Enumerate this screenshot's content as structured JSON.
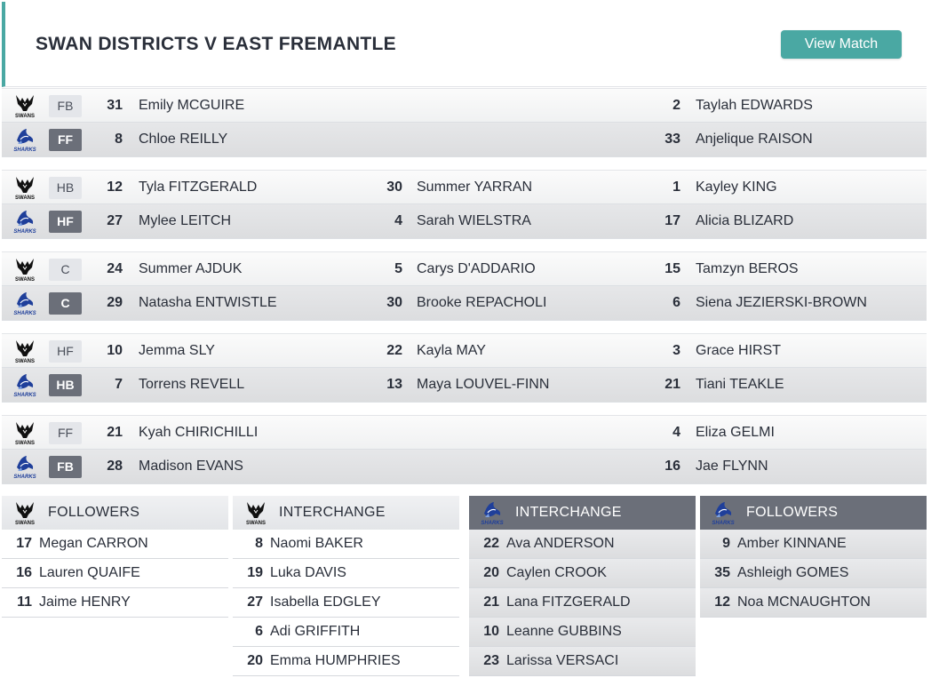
{
  "match": {
    "title": "SWAN DISTRICTS V EAST FREMANTLE",
    "view_button": "View Match"
  },
  "lines": [
    {
      "home": {
        "pos": "FB",
        "players": [
          {
            "num": "31",
            "name": "Emily MCGUIRE"
          },
          {
            "num": "",
            "name": ""
          },
          {
            "num": "2",
            "name": "Taylah EDWARDS"
          }
        ]
      },
      "away": {
        "pos": "FF",
        "players": [
          {
            "num": "8",
            "name": "Chloe REILLY"
          },
          {
            "num": "",
            "name": ""
          },
          {
            "num": "33",
            "name": "Anjelique RAISON"
          }
        ]
      }
    },
    {
      "home": {
        "pos": "HB",
        "players": [
          {
            "num": "12",
            "name": "Tyla FITZGERALD"
          },
          {
            "num": "30",
            "name": "Summer YARRAN"
          },
          {
            "num": "1",
            "name": "Kayley KING"
          }
        ]
      },
      "away": {
        "pos": "HF",
        "players": [
          {
            "num": "27",
            "name": "Mylee LEITCH"
          },
          {
            "num": "4",
            "name": "Sarah WIELSTRA"
          },
          {
            "num": "17",
            "name": "Alicia BLIZARD"
          }
        ]
      }
    },
    {
      "home": {
        "pos": "C",
        "players": [
          {
            "num": "24",
            "name": "Summer AJDUK"
          },
          {
            "num": "5",
            "name": "Carys D'ADDARIO"
          },
          {
            "num": "15",
            "name": "Tamzyn BEROS"
          }
        ]
      },
      "away": {
        "pos": "C",
        "players": [
          {
            "num": "29",
            "name": "Natasha ENTWISTLE"
          },
          {
            "num": "30",
            "name": "Brooke REPACHOLI"
          },
          {
            "num": "6",
            "name": "Siena JEZIERSKI-BROWN"
          }
        ]
      }
    },
    {
      "home": {
        "pos": "HF",
        "players": [
          {
            "num": "10",
            "name": "Jemma SLY"
          },
          {
            "num": "22",
            "name": "Kayla MAY"
          },
          {
            "num": "3",
            "name": "Grace HIRST"
          }
        ]
      },
      "away": {
        "pos": "HB",
        "players": [
          {
            "num": "7",
            "name": "Torrens REVELL"
          },
          {
            "num": "13",
            "name": "Maya LOUVEL-FINN"
          },
          {
            "num": "21",
            "name": "Tiani TEAKLE"
          }
        ]
      }
    },
    {
      "home": {
        "pos": "FF",
        "players": [
          {
            "num": "21",
            "name": "Kyah CHIRICHILLI"
          },
          {
            "num": "",
            "name": ""
          },
          {
            "num": "4",
            "name": "Eliza GELMI"
          }
        ]
      },
      "away": {
        "pos": "FB",
        "players": [
          {
            "num": "28",
            "name": "Madison EVANS"
          },
          {
            "num": "",
            "name": ""
          },
          {
            "num": "16",
            "name": "Jae FLYNN"
          }
        ]
      }
    }
  ],
  "benches": [
    {
      "team": "home",
      "title": "FOLLOWERS",
      "players": [
        {
          "num": "17",
          "name": "Megan CARRON"
        },
        {
          "num": "16",
          "name": "Lauren QUAIFE"
        },
        {
          "num": "11",
          "name": "Jaime HENRY"
        }
      ]
    },
    {
      "team": "home",
      "title": "INTERCHANGE",
      "players": [
        {
          "num": "8",
          "name": "Naomi BAKER"
        },
        {
          "num": "19",
          "name": "Luka DAVIS"
        },
        {
          "num": "27",
          "name": "Isabella EDGLEY"
        },
        {
          "num": "6",
          "name": "Adi GRIFFITH"
        },
        {
          "num": "20",
          "name": "Emma HUMPHRIES"
        }
      ]
    },
    {
      "team": "away",
      "title": "INTERCHANGE",
      "players": [
        {
          "num": "22",
          "name": "Ava ANDERSON"
        },
        {
          "num": "20",
          "name": "Caylen CROOK"
        },
        {
          "num": "21",
          "name": "Lana FITZGERALD"
        },
        {
          "num": "10",
          "name": "Leanne GUBBINS"
        },
        {
          "num": "23",
          "name": "Larissa VERSACI"
        }
      ]
    },
    {
      "team": "away",
      "title": "FOLLOWERS",
      "players": [
        {
          "num": "9",
          "name": "Amber KINNANE"
        },
        {
          "num": "35",
          "name": "Ashleigh GOMES"
        },
        {
          "num": "12",
          "name": "Noa MCNAUGHTON"
        }
      ]
    }
  ],
  "logos": {
    "home": {
      "icon": "swans-logo-icon",
      "text": "SWANS",
      "color": "#111111"
    },
    "away": {
      "icon": "sharks-logo-icon",
      "text": "SHARKS",
      "color": "#1f3f9a"
    }
  },
  "colors": {
    "accent": "#4aa8a3",
    "away_badge": "#6b6f79"
  }
}
